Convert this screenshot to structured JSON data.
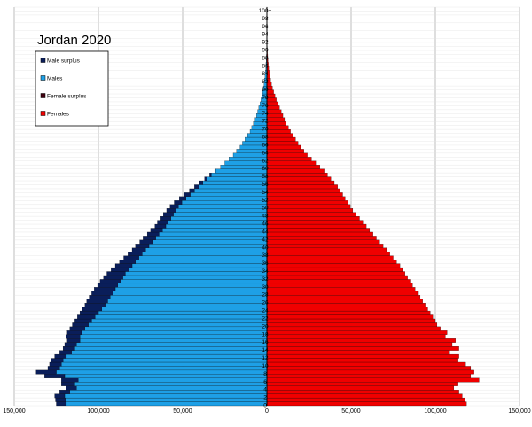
{
  "chart_data": {
    "type": "bar",
    "orientation": "horizontal",
    "title": "Jordan 2020",
    "xlim": [
      -150000,
      150000
    ],
    "x_ticks": [
      -150000,
      -100000,
      -50000,
      0,
      50000,
      100000,
      150000
    ],
    "x_tick_labels": [
      "150,000",
      "100,000",
      "50,000",
      "0",
      "50,000",
      "100,000",
      "150,000"
    ],
    "age_labels_shown": [
      "100+",
      "98",
      "96",
      "94",
      "92",
      "90",
      "88",
      "86",
      "84",
      "82",
      "80",
      "78",
      "76",
      "74",
      "72",
      "70",
      "68",
      "66",
      "64",
      "62",
      "60",
      "58",
      "56",
      "54",
      "52",
      "50",
      "48",
      "46",
      "44",
      "42",
      "40",
      "38",
      "36",
      "34",
      "32",
      "30",
      "28",
      "26",
      "24",
      "22",
      "20",
      "18",
      "16",
      "14",
      "12",
      "10",
      "8",
      "6",
      "4",
      "2",
      "0"
    ],
    "ages": [
      0,
      1,
      2,
      3,
      4,
      5,
      6,
      7,
      8,
      9,
      10,
      11,
      12,
      13,
      14,
      15,
      16,
      17,
      18,
      19,
      20,
      21,
      22,
      23,
      24,
      25,
      26,
      27,
      28,
      29,
      30,
      31,
      32,
      33,
      34,
      35,
      36,
      37,
      38,
      39,
      40,
      41,
      42,
      43,
      44,
      45,
      46,
      47,
      48,
      49,
      50,
      51,
      52,
      53,
      54,
      55,
      56,
      57,
      58,
      59,
      60,
      61,
      62,
      63,
      64,
      65,
      66,
      67,
      68,
      69,
      70,
      71,
      72,
      73,
      74,
      75,
      76,
      77,
      78,
      79,
      80,
      81,
      82,
      83,
      84,
      85,
      86,
      87,
      88,
      89,
      90,
      91,
      92,
      93,
      94,
      95,
      96,
      97,
      98,
      99,
      "100+"
    ],
    "grid": true,
    "legend_position": "top-left",
    "series": [
      {
        "name": "Males",
        "color": "#1ea0e6",
        "values": [
          119000,
          119500,
          120000,
          117000,
          113000,
          114000,
          112000,
          120000,
          125000,
          123000,
          122000,
          121000,
          119000,
          116000,
          114000,
          113000,
          111000,
          111000,
          110000,
          108000,
          106000,
          104000,
          102000,
          100000,
          98000,
          96000,
          94500,
          93000,
          91500,
          90000,
          88500,
          87000,
          85500,
          84000,
          82000,
          80000,
          78000,
          76000,
          74000,
          72000,
          70000,
          68000,
          66000,
          64000,
          62000,
          60000,
          58500,
          57000,
          55500,
          54000,
          52500,
          50500,
          48000,
          45500,
          43000,
          40500,
          38000,
          35500,
          33000,
          30500,
          27500,
          25000,
          22500,
          20000,
          18000,
          16000,
          14500,
          13000,
          11500,
          10000,
          9000,
          8000,
          7000,
          6200,
          5500,
          4800,
          4100,
          3500,
          3000,
          2500,
          2100,
          1700,
          1400,
          1100,
          900,
          700,
          550,
          400,
          300,
          200,
          150,
          100,
          70,
          50,
          30,
          20,
          15,
          10,
          5,
          3,
          2
        ]
      },
      {
        "name": "Male surplus",
        "color": "#0a1e5a",
        "values": [
          6000,
          6000,
          6000,
          6000,
          6000,
          8000,
          10000,
          12000,
          12000,
          7000,
          7000,
          7000,
          7000,
          7000,
          7000,
          7000,
          7500,
          8000,
          8500,
          9000,
          9500,
          10000,
          10500,
          11000,
          11500,
          12000,
          12500,
          12500,
          12500,
          12500,
          12000,
          12000,
          11500,
          11000,
          10500,
          10000,
          9500,
          9000,
          8500,
          8000,
          8000,
          7500,
          7500,
          7000,
          7000,
          6500,
          6500,
          6000,
          6000,
          5500,
          5000,
          4500,
          4000,
          3500,
          3000,
          2500,
          2000,
          1500,
          1000,
          500,
          0,
          0,
          0,
          0,
          0,
          0,
          0,
          0,
          0,
          0,
          0,
          0,
          0,
          0,
          0,
          0,
          0,
          0,
          0,
          0,
          0,
          0,
          0,
          0,
          0,
          0,
          0,
          0,
          0,
          0,
          0,
          0,
          0,
          0,
          0,
          0,
          0,
          0,
          0,
          0,
          0
        ]
      },
      {
        "name": "Females",
        "color": "#f00000",
        "values": [
          118500,
          117500,
          116000,
          114000,
          111000,
          113000,
          126000,
          121000,
          123000,
          121000,
          118000,
          113000,
          114000,
          108000,
          114000,
          110000,
          112000,
          106000,
          107000,
          103000,
          101000,
          100000,
          98500,
          97000,
          95500,
          94000,
          92500,
          91000,
          89500,
          88000,
          86500,
          85000,
          83500,
          82000,
          80500,
          79000,
          77000,
          75000,
          73000,
          71000,
          69000,
          67000,
          65000,
          63000,
          61000,
          59000,
          57000,
          55000,
          53000,
          51000,
          49500,
          48000,
          46500,
          45000,
          43500,
          42000,
          40000,
          38000,
          36000,
          34000,
          31500,
          29000,
          26500,
          24000,
          22000,
          20000,
          18500,
          17000,
          15500,
          14000,
          12800,
          11500,
          10500,
          9500,
          8500,
          7500,
          6500,
          5600,
          4800,
          4000,
          3300,
          2700,
          2200,
          1800,
          1400,
          1100,
          850,
          650,
          500,
          350,
          250,
          170,
          120,
          80,
          50,
          30,
          20,
          12,
          7,
          4,
          2
        ]
      },
      {
        "name": "Female surplus",
        "color": "#400010",
        "values": [
          0,
          0,
          0,
          0,
          0,
          0,
          0,
          0,
          0,
          0,
          0,
          0,
          0,
          0,
          0,
          0,
          0,
          0,
          0,
          0,
          0,
          0,
          0,
          0,
          0,
          0,
          0,
          0,
          0,
          0,
          0,
          0,
          0,
          0,
          0,
          0,
          0,
          0,
          0,
          0,
          0,
          0,
          0,
          0,
          0,
          0,
          0,
          0,
          0,
          0,
          0,
          0,
          0,
          0,
          0,
          0,
          0,
          0,
          0,
          0,
          0,
          0,
          0,
          0,
          0,
          0,
          0,
          0,
          0,
          0,
          0,
          0,
          0,
          0,
          0,
          0,
          0,
          0,
          0,
          0,
          0,
          0,
          0,
          0,
          0,
          0,
          0,
          0,
          0,
          0,
          0,
          0,
          0,
          0,
          0,
          0,
          0,
          0,
          0,
          0,
          0
        ]
      }
    ]
  },
  "legend": {
    "items": [
      {
        "label": "Male surplus",
        "color": "#0a1e5a"
      },
      {
        "label": "Males",
        "color": "#1ea0e6"
      },
      {
        "label": "Female surplus",
        "color": "#400010"
      },
      {
        "label": "Females",
        "color": "#f00000"
      }
    ]
  }
}
